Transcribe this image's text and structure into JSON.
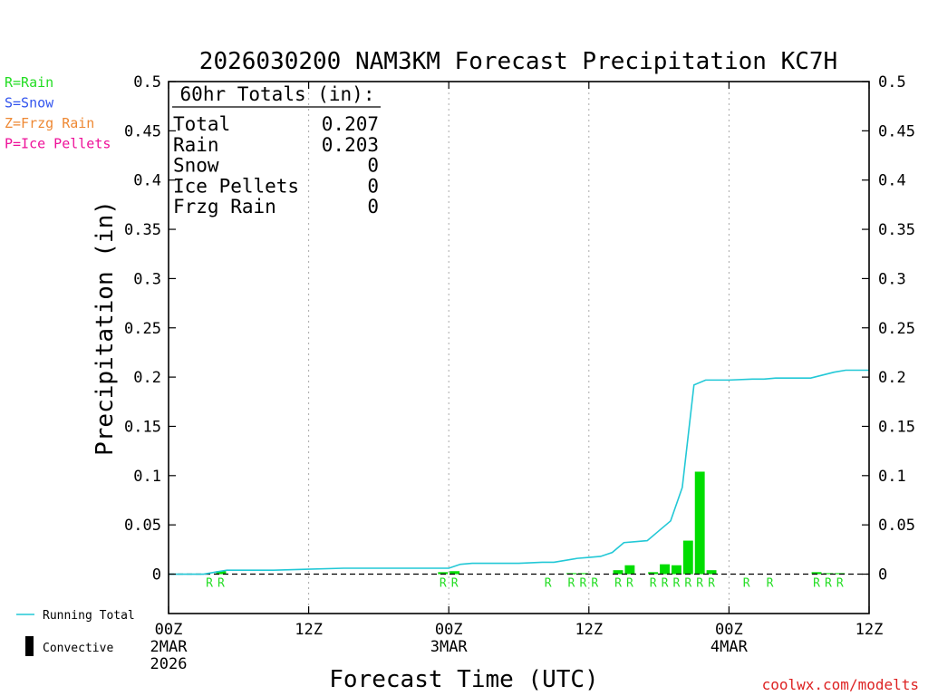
{
  "chart_data": {
    "type": "bar",
    "title": "2026030200 NAM3KM Forecast Precipitation KC7H",
    "xlabel": "Forecast Time (UTC)",
    "ylabel": "Precipitation (in)",
    "xlim_hours": [
      0,
      60
    ],
    "ylim": [
      -0.04,
      0.5
    ],
    "y_ticks": [
      {
        "value": 0,
        "label": "0"
      },
      {
        "value": 0.05,
        "label": "0.05"
      },
      {
        "value": 0.1,
        "label": "0.1"
      },
      {
        "value": 0.15,
        "label": "0.15"
      },
      {
        "value": 0.2,
        "label": "0.2"
      },
      {
        "value": 0.25,
        "label": "0.25"
      },
      {
        "value": 0.3,
        "label": "0.3"
      },
      {
        "value": 0.35,
        "label": "0.35"
      },
      {
        "value": 0.4,
        "label": "0.4"
      },
      {
        "value": 0.45,
        "label": "0.45"
      },
      {
        "value": 0.5,
        "label": "0.5"
      }
    ],
    "x_ticks": [
      {
        "hour": 0,
        "label": "00Z",
        "date": "2MAR",
        "year": "2026"
      },
      {
        "hour": 12,
        "label": "12Z",
        "date": "",
        "year": ""
      },
      {
        "hour": 24,
        "label": "00Z",
        "date": "3MAR",
        "year": ""
      },
      {
        "hour": 36,
        "label": "12Z",
        "date": "",
        "year": ""
      },
      {
        "hour": 48,
        "label": "00Z",
        "date": "4MAR",
        "year": ""
      },
      {
        "hour": 60,
        "label": "12Z",
        "date": "",
        "year": ""
      }
    ],
    "hourly_precip": [
      {
        "hour": 4,
        "value": 0.0,
        "type": "R"
      },
      {
        "hour": 5,
        "value": 0.003,
        "type": "R"
      },
      {
        "hour": 24,
        "value": 0.002,
        "type": "R"
      },
      {
        "hour": 25,
        "value": 0.003,
        "type": "R"
      },
      {
        "hour": 33,
        "value": 0.0,
        "type": "R"
      },
      {
        "hour": 35,
        "value": 0.001,
        "type": "R"
      },
      {
        "hour": 36,
        "value": 0.001,
        "type": "R"
      },
      {
        "hour": 37,
        "value": 0.0,
        "type": "R"
      },
      {
        "hour": 39,
        "value": 0.004,
        "type": "R"
      },
      {
        "hour": 40,
        "value": 0.009,
        "type": "R"
      },
      {
        "hour": 42,
        "value": 0.002,
        "type": "R"
      },
      {
        "hour": 43,
        "value": 0.01,
        "type": "R"
      },
      {
        "hour": 44,
        "value": 0.009,
        "type": "R"
      },
      {
        "hour": 45,
        "value": 0.034,
        "type": "R"
      },
      {
        "hour": 46,
        "value": 0.104,
        "type": "R"
      },
      {
        "hour": 47,
        "value": 0.004,
        "type": "R"
      },
      {
        "hour": 50,
        "value": 0.0,
        "type": "R"
      },
      {
        "hour": 52,
        "value": 0.0,
        "type": "R"
      },
      {
        "hour": 56,
        "value": 0.002,
        "type": "R"
      },
      {
        "hour": 57,
        "value": 0.001,
        "type": "R"
      },
      {
        "hour": 58,
        "value": 0.001,
        "type": "R"
      }
    ],
    "running_total": {
      "name": "Running Total",
      "hours": [
        0,
        3,
        4,
        5,
        6,
        9,
        12,
        15,
        18,
        21,
        24,
        25,
        26,
        27,
        30,
        32,
        33,
        34,
        35,
        36,
        37,
        38,
        39,
        40,
        41,
        42,
        43,
        44,
        45,
        46,
        47,
        48,
        50,
        51,
        52,
        53,
        54,
        55,
        56,
        57,
        58,
        60
      ],
      "values": [
        0,
        0,
        0.002,
        0.004,
        0.004,
        0.004,
        0.005,
        0.006,
        0.006,
        0.006,
        0.006,
        0.01,
        0.011,
        0.011,
        0.011,
        0.012,
        0.012,
        0.014,
        0.016,
        0.017,
        0.018,
        0.022,
        0.032,
        0.033,
        0.034,
        0.044,
        0.054,
        0.088,
        0.192,
        0.197,
        0.197,
        0.197,
        0.198,
        0.198,
        0.199,
        0.199,
        0.199,
        0.199,
        0.202,
        0.205,
        0.207,
        0.207
      ]
    },
    "totals_box": {
      "heading": "60hr Totals (in):",
      "rows": [
        {
          "label": "Total",
          "value": "0.207"
        },
        {
          "label": "Rain",
          "value": "0.203"
        },
        {
          "label": "Snow",
          "value": "0"
        },
        {
          "label": "Ice Pellets",
          "value": "0"
        },
        {
          "label": "Frzg Rain",
          "value": "0"
        }
      ]
    },
    "type_legend": [
      {
        "text": "R=Rain",
        "color": "#22dd22"
      },
      {
        "text": "S=Snow",
        "color": "#3355ee"
      },
      {
        "text": "Z=Frzg Rain",
        "color": "#ee8833"
      },
      {
        "text": "P=Ice Pellets",
        "color": "#ee1199"
      }
    ],
    "series_legend": [
      {
        "text": "Running Total",
        "kind": "line",
        "color": "#22c8d6"
      },
      {
        "text": "Convective",
        "kind": "bar",
        "color": "#000000"
      }
    ],
    "credit": "coolwx.com/modelts",
    "colors": {
      "rain_bar": "#00dd00",
      "running_total": "#22c8d6",
      "grid": "#aaaaaa",
      "credit": "#dd2222"
    }
  }
}
